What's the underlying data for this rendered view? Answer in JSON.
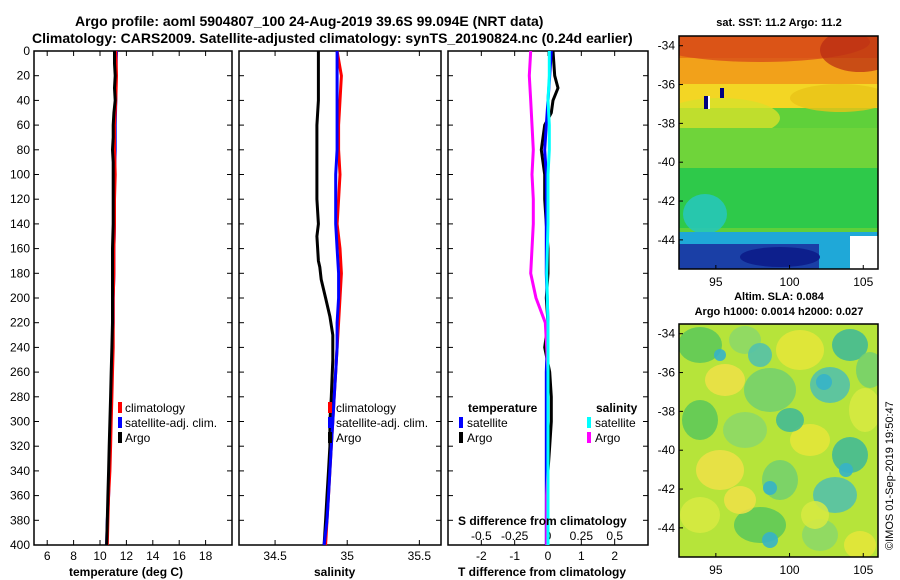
{
  "title": {
    "line1": "Argo profile: aoml 5904807_100 24-Aug-2019 39.6S 99.094E (NRT data)",
    "line2": "Climatology: CARS2009. Satellite-adjusted climatology: synTS_20190824.nc (0.24d earlier)"
  },
  "colors": {
    "climatology": "#ff0000",
    "satellite": "#0000ff",
    "argo": "#000000",
    "sat_salinity": "#00ffff",
    "argo_salinity": "#ff00ff"
  },
  "chart_data": [
    {
      "type": "line",
      "id": "temperature",
      "xlabel": "temperature (deg C)",
      "xlim": [
        5,
        20
      ],
      "xticks": [
        "6",
        "8",
        "10",
        "12",
        "14",
        "16",
        "18"
      ],
      "ylim": [
        0,
        400
      ],
      "yticks": [
        "0",
        "20",
        "40",
        "60",
        "80",
        "100",
        "120",
        "140",
        "160",
        "180",
        "200",
        "220",
        "240",
        "260",
        "280",
        "300",
        "320",
        "340",
        "360",
        "380",
        "400"
      ],
      "legend": [
        "climatology",
        "satellite-adj. clim.",
        "Argo"
      ],
      "series": [
        {
          "name": "climatology",
          "color": "#ff0000",
          "depth": [
            0,
            20,
            40,
            60,
            80,
            100,
            120,
            140,
            160,
            180,
            200,
            220,
            240,
            260,
            280,
            300,
            320,
            340,
            360,
            380,
            400
          ],
          "values": [
            11.2,
            11.25,
            11.2,
            11.1,
            11.1,
            11.15,
            11.1,
            11.1,
            11.05,
            11.05,
            11.0,
            11.0,
            11.0,
            10.95,
            10.9,
            10.85,
            10.8,
            10.75,
            10.65,
            10.6,
            10.55
          ]
        },
        {
          "name": "satellite-adj. clim.",
          "color": "#0000ff",
          "depth": [
            0,
            20,
            40,
            60,
            80,
            100,
            120,
            140,
            160,
            180,
            200,
            220,
            240,
            260,
            280,
            300,
            320,
            340,
            360,
            380,
            400
          ],
          "values": [
            11.25,
            11.2,
            11.2,
            11.15,
            11.15,
            11.1,
            11.1,
            11.1,
            11.05,
            11.05,
            11.0,
            11.0,
            10.95,
            10.9,
            10.85,
            10.8,
            10.75,
            10.7,
            10.65,
            10.55,
            10.5
          ]
        },
        {
          "name": "Argo",
          "color": "#000000",
          "depth": [
            0,
            10,
            20,
            30,
            40,
            50,
            60,
            70,
            80,
            90,
            100,
            120,
            140,
            160,
            180,
            200,
            220,
            240,
            260,
            280,
            300,
            320,
            340,
            360,
            380,
            400
          ],
          "values": [
            11.1,
            11.1,
            11.15,
            11.1,
            11.15,
            11.05,
            11.0,
            11.0,
            10.95,
            11.0,
            11.0,
            11.0,
            11.0,
            10.95,
            10.95,
            10.95,
            10.95,
            10.9,
            10.85,
            10.8,
            10.75,
            10.7,
            10.65,
            10.6,
            10.55,
            10.5
          ]
        }
      ]
    },
    {
      "type": "line",
      "id": "salinity",
      "xlabel": "salinity",
      "xlim": [
        34.25,
        35.65
      ],
      "xticks": [
        "34.5",
        "35",
        "35.5"
      ],
      "ylim": [
        0,
        400
      ],
      "legend": [
        "climatology",
        "satellite-adj. clim.",
        "Argo"
      ],
      "series": [
        {
          "name": "climatology",
          "color": "#ff0000",
          "depth": [
            0,
            20,
            40,
            60,
            80,
            100,
            120,
            140,
            160,
            180,
            200,
            220,
            240,
            260,
            280,
            300,
            320,
            340,
            360,
            380,
            400
          ],
          "values": [
            34.93,
            34.96,
            34.95,
            34.94,
            34.94,
            34.95,
            34.94,
            34.93,
            34.95,
            34.96,
            34.95,
            34.94,
            34.93,
            34.92,
            34.91,
            34.9,
            34.89,
            34.88,
            34.87,
            34.86,
            34.85
          ]
        },
        {
          "name": "satellite-adj. clim.",
          "color": "#0000ff",
          "depth": [
            0,
            20,
            40,
            60,
            80,
            100,
            120,
            140,
            160,
            180,
            200,
            220,
            240,
            260,
            280,
            300,
            320,
            340,
            360,
            380,
            400
          ],
          "values": [
            34.93,
            34.93,
            34.93,
            34.93,
            34.93,
            34.92,
            34.92,
            34.92,
            34.93,
            34.94,
            34.94,
            34.93,
            34.93,
            34.92,
            34.91,
            34.9,
            34.89,
            34.88,
            34.87,
            34.86,
            34.84
          ]
        },
        {
          "name": "Argo",
          "color": "#000000",
          "depth": [
            0,
            20,
            40,
            60,
            80,
            100,
            120,
            140,
            150,
            170,
            175,
            185,
            200,
            215,
            230,
            250,
            280,
            300,
            320,
            340,
            360,
            380,
            400
          ],
          "values": [
            34.8,
            34.8,
            34.8,
            34.79,
            34.79,
            34.79,
            34.79,
            34.8,
            34.79,
            34.8,
            34.81,
            34.82,
            34.85,
            34.88,
            34.9,
            34.9,
            34.89,
            34.88,
            34.88,
            34.87,
            34.86,
            34.85,
            34.84
          ]
        }
      ]
    },
    {
      "type": "line",
      "id": "differences",
      "xlabel": "T difference from climatology",
      "xlim": [
        -3,
        3
      ],
      "xticks": [
        "-2",
        "-1",
        "0",
        "1",
        "2"
      ],
      "xlabel_top": "S difference from climatology",
      "xticks_top": [
        "-0.5",
        "-0.25",
        "0",
        "0.25",
        "0.5"
      ],
      "ylim": [
        0,
        400
      ],
      "legend_temperature_title": "temperature",
      "legend_temperature": [
        "satellite",
        "Argo"
      ],
      "legend_salinity_title": "salinity",
      "legend_salinity": [
        "satellite",
        "Argo"
      ],
      "series": [
        {
          "name": "T satellite",
          "color": "#0000ff",
          "depth": [
            0,
            20,
            40,
            60,
            80,
            100,
            140,
            180,
            220,
            260,
            300,
            340,
            380,
            400
          ],
          "values": [
            0.1,
            0.05,
            0.0,
            -0.05,
            -0.1,
            -0.05,
            -0.05,
            -0.05,
            0.0,
            -0.05,
            -0.05,
            -0.05,
            -0.05,
            -0.05
          ]
        },
        {
          "name": "T Argo",
          "color": "#000000",
          "depth": [
            0,
            20,
            30,
            40,
            50,
            60,
            70,
            80,
            90,
            100,
            120,
            140,
            160,
            180,
            200,
            220,
            240,
            260,
            280,
            300,
            320,
            340,
            360,
            380,
            400
          ],
          "values": [
            0.15,
            0.2,
            0.3,
            0.15,
            0.1,
            -0.1,
            -0.15,
            -0.2,
            -0.15,
            -0.1,
            -0.1,
            -0.05,
            0.0,
            0.0,
            -0.05,
            0.0,
            -0.1,
            0.05,
            0.1,
            0.1,
            0.05,
            0.0,
            0.0,
            0.0,
            0.0
          ]
        },
        {
          "name": "S satellite",
          "color": "#00ffff",
          "depth": [
            0,
            20,
            40,
            60,
            80,
            100,
            140,
            180,
            220,
            260,
            300,
            340,
            380,
            400
          ],
          "values": [
            0.01,
            0.01,
            0.0,
            0.01,
            0.01,
            0.0,
            0.0,
            -0.01,
            0.0,
            0.0,
            0.0,
            0.0,
            0.0,
            0.0
          ]
        },
        {
          "name": "S Argo",
          "color": "#ff00ff",
          "depth": [
            0,
            20,
            40,
            60,
            80,
            100,
            120,
            140,
            160,
            180,
            200,
            220,
            240,
            260,
            280,
            300,
            320,
            340,
            360,
            380,
            400
          ],
          "values": [
            -0.13,
            -0.14,
            -0.13,
            -0.12,
            -0.11,
            -0.12,
            -0.11,
            -0.11,
            -0.12,
            -0.13,
            -0.09,
            -0.02,
            -0.01,
            0.0,
            0.0,
            0.0,
            0.0,
            0.0,
            -0.01,
            -0.01,
            -0.01
          ]
        }
      ]
    },
    {
      "type": "heatmap",
      "id": "sst_map",
      "title": "sat. SST: 11.2 Argo: 11.2",
      "xlim": [
        92.5,
        106
      ],
      "ylim": [
        -45.5,
        -33.5
      ],
      "xticks": [
        "95",
        "100",
        "105"
      ],
      "yticks": [
        "-34",
        "-36",
        "-38",
        "-40",
        "-42",
        "-44"
      ]
    },
    {
      "type": "heatmap",
      "id": "sla_map",
      "title_line1": "Altim. SLA: 0.084",
      "title_line2": "Argo h1000: 0.0014 h2000: 0.027",
      "xlim": [
        92.5,
        106
      ],
      "ylim": [
        -45.5,
        -33.5
      ],
      "xticks": [
        "95",
        "100",
        "105"
      ],
      "yticks": [
        "-34",
        "-36",
        "-38",
        "-40",
        "-42",
        "-44"
      ]
    }
  ],
  "credit": "©IMOS 01-Sep-2019 19:50:47"
}
